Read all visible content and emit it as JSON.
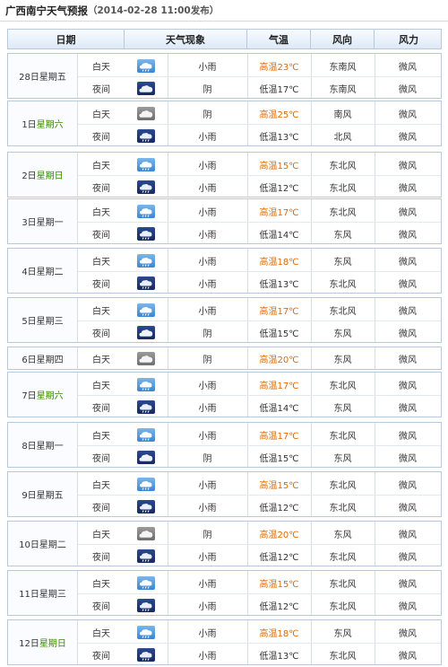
{
  "page": {
    "title": "广西南宁天气预报",
    "date_published": "（2014-02-28 11:00发布）"
  },
  "headers": {
    "date": "日期",
    "weather": "天气现象",
    "temp": "气温",
    "wind_dir": "风向",
    "wind_force": "风力"
  },
  "colors": {
    "high_temp": "#e06a00",
    "weekend": "#3a8a00",
    "border": "#b9c9dc"
  },
  "days": [
    {
      "date": "28日星期五",
      "rows": [
        {
          "period": "白天",
          "icon": "rain-day-icon",
          "desc": "小雨",
          "temp": "高温23℃",
          "wind_dir": "东南风",
          "wind_force": "微风"
        },
        {
          "period": "夜间",
          "icon": "cloud-night-icon",
          "desc": "阴",
          "temp": "低温17℃",
          "wind_dir": "东南风",
          "wind_force": "微风"
        }
      ]
    },
    {
      "date": "1日星期六",
      "rows": [
        {
          "period": "白天",
          "icon": "cloud-day-icon",
          "desc": "阴",
          "temp": "高温25℃",
          "wind_dir": "南风",
          "wind_force": "微风"
        },
        {
          "period": "夜间",
          "icon": "rain-night-icon",
          "desc": "小雨",
          "temp": "低温13℃",
          "wind_dir": "北风",
          "wind_force": "微风"
        }
      ]
    },
    {
      "date": "2日星期日",
      "rows": [
        {
          "period": "白天",
          "icon": "rain-day-icon",
          "desc": "小雨",
          "temp": "高温15℃",
          "wind_dir": "东北风",
          "wind_force": "微风"
        },
        {
          "period": "夜间",
          "icon": "rain-night-icon",
          "desc": "小雨",
          "temp": "低温12℃",
          "wind_dir": "东北风",
          "wind_force": "微风"
        }
      ]
    },
    {
      "date": "3日星期一",
      "rows": [
        {
          "period": "白天",
          "icon": "rain-day-icon",
          "desc": "小雨",
          "temp": "高温17℃",
          "wind_dir": "东北风",
          "wind_force": "微风"
        },
        {
          "period": "夜间",
          "icon": "rain-night-icon",
          "desc": "小雨",
          "temp": "低温14℃",
          "wind_dir": "东风",
          "wind_force": "微风"
        }
      ]
    },
    {
      "date": "4日星期二",
      "rows": [
        {
          "period": "白天",
          "icon": "rain-day-icon",
          "desc": "小雨",
          "temp": "高温18℃",
          "wind_dir": "东风",
          "wind_force": "微风"
        },
        {
          "period": "夜间",
          "icon": "rain-night-icon",
          "desc": "小雨",
          "temp": "低温13℃",
          "wind_dir": "东北风",
          "wind_force": "微风"
        }
      ]
    },
    {
      "date": "5日星期三",
      "rows": [
        {
          "period": "白天",
          "icon": "rain-day-icon",
          "desc": "小雨",
          "temp": "高温17℃",
          "wind_dir": "东北风",
          "wind_force": "微风"
        },
        {
          "period": "夜间",
          "icon": "cloud-night-icon",
          "desc": "阴",
          "temp": "低温15℃",
          "wind_dir": "东风",
          "wind_force": "微风"
        }
      ]
    },
    {
      "date": "6日星期四",
      "rows": [
        {
          "period": "白天",
          "icon": "cloud-day-icon",
          "desc": "阴",
          "temp": "高温20℃",
          "wind_dir": "东风",
          "wind_force": "微风"
        }
      ]
    },
    {
      "date": "7日星期六",
      "rows": [
        {
          "period": "白天",
          "icon": "rain-day-icon",
          "desc": "小雨",
          "temp": "高温17℃",
          "wind_dir": "东北风",
          "wind_force": "微风"
        },
        {
          "period": "夜间",
          "icon": "rain-night-icon",
          "desc": "小雨",
          "temp": "低温14℃",
          "wind_dir": "东风",
          "wind_force": "微风"
        }
      ]
    },
    {
      "date": "8日星期一",
      "rows": [
        {
          "period": "白天",
          "icon": "rain-day-icon",
          "desc": "小雨",
          "temp": "高温17℃",
          "wind_dir": "东北风",
          "wind_force": "微风"
        },
        {
          "period": "夜间",
          "icon": "cloud-night-icon",
          "desc": "阴",
          "temp": "低温15℃",
          "wind_dir": "东风",
          "wind_force": "微风"
        }
      ]
    },
    {
      "date": "9日星期五",
      "rows": [
        {
          "period": "白天",
          "icon": "rain-day-icon",
          "desc": "小雨",
          "temp": "高温15℃",
          "wind_dir": "东北风",
          "wind_force": "微风"
        },
        {
          "period": "夜间",
          "icon": "rain-night-icon",
          "desc": "小雨",
          "temp": "低温12℃",
          "wind_dir": "东北风",
          "wind_force": "微风"
        }
      ]
    },
    {
      "date": "10日星期二",
      "rows": [
        {
          "period": "白天",
          "icon": "cloud-day-icon",
          "desc": "阴",
          "temp": "高温20℃",
          "wind_dir": "东风",
          "wind_force": "微风"
        },
        {
          "period": "夜间",
          "icon": "rain-night-icon",
          "desc": "小雨",
          "temp": "低温12℃",
          "wind_dir": "东北风",
          "wind_force": "微风"
        }
      ]
    },
    {
      "date": "11日星期三",
      "rows": [
        {
          "period": "白天",
          "icon": "rain-day-icon",
          "desc": "小雨",
          "temp": "高温15℃",
          "wind_dir": "东北风",
          "wind_force": "微风"
        },
        {
          "period": "夜间",
          "icon": "rain-night-icon",
          "desc": "小雨",
          "temp": "低温12℃",
          "wind_dir": "东北风",
          "wind_force": "微风"
        }
      ]
    },
    {
      "date": "12日星期日",
      "rows": [
        {
          "period": "白天",
          "icon": "rain-day-icon",
          "desc": "小雨",
          "temp": "高温18℃",
          "wind_dir": "东风",
          "wind_force": "微风"
        },
        {
          "period": "夜间",
          "icon": "rain-night-icon",
          "desc": "小雨",
          "temp": "低温13℃",
          "wind_dir": "东北风",
          "wind_force": "微风"
        }
      ]
    }
  ]
}
